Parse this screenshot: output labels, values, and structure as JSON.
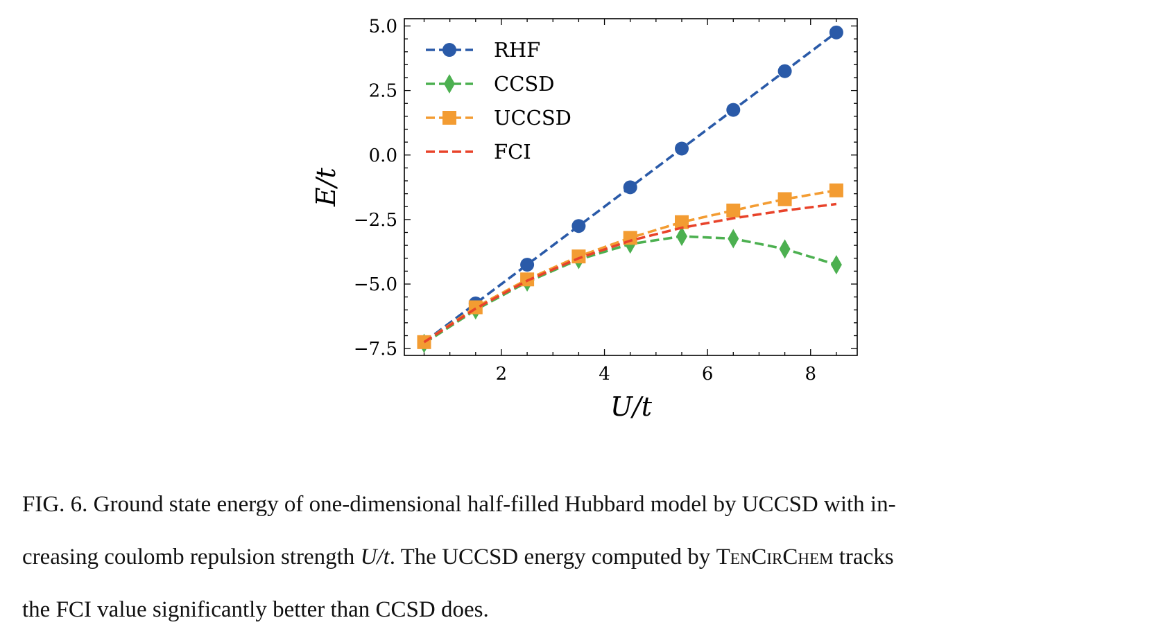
{
  "chart_data": {
    "type": "line",
    "xlabel": "U/t",
    "ylabel": "E/t",
    "xlim": [
      0.1,
      8.9
    ],
    "ylim": [
      -7.7,
      5.3
    ],
    "xticks": [
      2,
      4,
      6,
      8
    ],
    "yticks": [
      5.0,
      2.5,
      0.0,
      -2.5,
      -5.0,
      -7.5
    ],
    "ytick_labels": [
      "5.0",
      "2.5",
      "0.0",
      "−2.5",
      "−5.0",
      "−7.5"
    ],
    "xtick_labels": [
      "2",
      "4",
      "6",
      "8"
    ],
    "grid": false,
    "legend_position": "top-left",
    "x": [
      0.5,
      1.5,
      2.5,
      3.5,
      4.5,
      5.5,
      6.5,
      7.5,
      8.5
    ],
    "series": [
      {
        "name": "RHF",
        "color": "#2a5aa8",
        "marker": "circle",
        "values": [
          -7.25,
          -5.75,
          -4.25,
          -2.75,
          -1.25,
          0.25,
          1.75,
          3.25,
          4.75
        ]
      },
      {
        "name": "CCSD",
        "color": "#4cb050",
        "marker": "diamond",
        "values": [
          -7.3,
          -6.0,
          -4.92,
          -4.05,
          -3.45,
          -3.15,
          -3.24,
          -3.64,
          -4.25
        ]
      },
      {
        "name": "UCCSD",
        "color": "#f39c32",
        "marker": "square",
        "values": [
          -7.25,
          -5.9,
          -4.82,
          -3.93,
          -3.21,
          -2.6,
          -2.15,
          -1.71,
          -1.37
        ]
      },
      {
        "name": "FCI",
        "color": "#e8432a",
        "marker": "none",
        "values": [
          -7.25,
          -5.95,
          -4.87,
          -4.0,
          -3.32,
          -2.82,
          -2.45,
          -2.15,
          -1.9
        ]
      }
    ]
  },
  "caption": {
    "line1": "FIG. 6.  Ground state energy of one-dimensional half-filled Hubbard model by UCCSD with in-",
    "line2_a": "creasing coulomb repulsion strength ",
    "line2_math": "U/t",
    "line2_b": ". The UCCSD energy computed by ",
    "line2_sc": "TenCirChem",
    "line2_c": " tracks",
    "line3": "the FCI value significantly better than CCSD does."
  }
}
